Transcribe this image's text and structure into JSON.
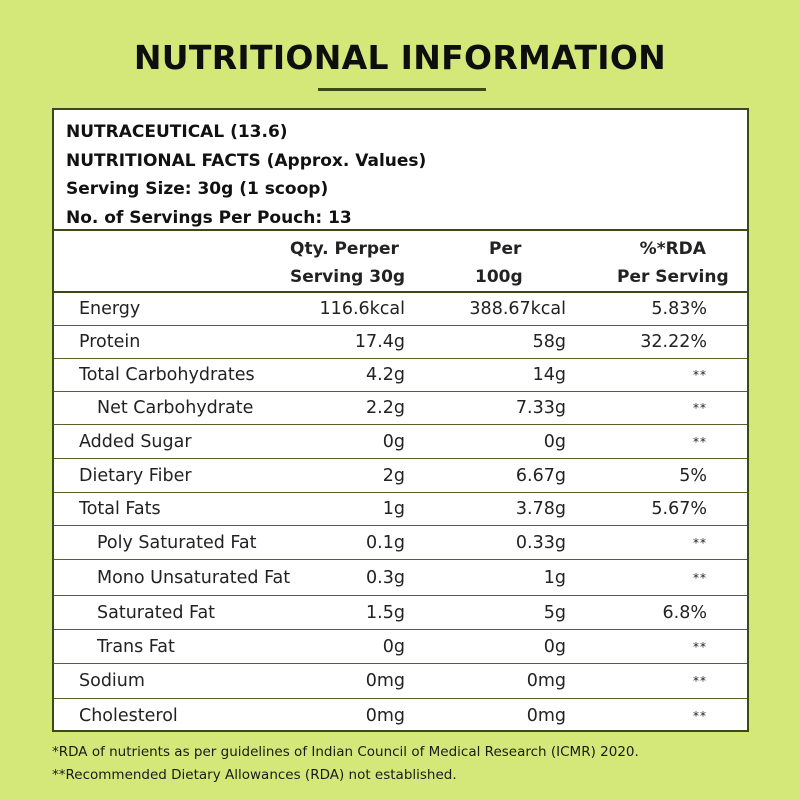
{
  "title": "NUTRITIONAL INFORMATION",
  "facts": [
    "NUTRACEUTICAL (13.6)",
    "NUTRITIONAL FACTS (Approx. Values)",
    "Serving Size: 30g (1 scoop)",
    "No. of Servings Per Pouch: 13"
  ],
  "headers": {
    "qty": [
      "Qty. Perper",
      "Serving 30g"
    ],
    "per": [
      "Per",
      "100g"
    ],
    "rda": [
      "%*RDA",
      "Per Serving"
    ]
  },
  "rows": [
    {
      "name": "Energy",
      "qty": "116.6kcal",
      "per100": "388.67kcal",
      "rda": "5.83%",
      "indent": false
    },
    {
      "name": "Protein",
      "qty": "17.4g",
      "per100": "58g",
      "rda": "32.22%",
      "indent": false
    },
    {
      "name": "Total Carbohydrates",
      "qty": "4.2g",
      "per100": "14g",
      "rda": "**",
      "indent": false
    },
    {
      "name": "Net Carbohydrate",
      "qty": "2.2g",
      "per100": "7.33g",
      "rda": "**",
      "indent": true
    },
    {
      "name": "Added Sugar",
      "qty": "0g",
      "per100": "0g",
      "rda": "**",
      "indent": false
    },
    {
      "name": "Dietary Fiber",
      "qty": "2g",
      "per100": "6.67g",
      "rda": "5%",
      "indent": false
    },
    {
      "name": "Total Fats",
      "qty": "1g",
      "per100": "3.78g",
      "rda": "5.67%",
      "indent": false
    },
    {
      "name": "Poly Saturated Fat",
      "qty": "0.1g",
      "per100": "0.33g",
      "rda": "**",
      "indent": true
    },
    {
      "name": "Mono Unsaturated Fat",
      "qty": "0.3g",
      "per100": "1g",
      "rda": "**",
      "indent": true
    },
    {
      "name": "Saturated Fat",
      "qty": "1.5g",
      "per100": "5g",
      "rda": "6.8%",
      "indent": true
    },
    {
      "name": "Trans Fat",
      "qty": "0g",
      "per100": "0g",
      "rda": "**",
      "indent": true
    },
    {
      "name": "Sodium",
      "qty": "0mg",
      "per100": "0mg",
      "rda": "**",
      "indent": false
    },
    {
      "name": "Cholesterol",
      "qty": "0mg",
      "per100": "0mg",
      "rda": "**",
      "indent": false
    }
  ],
  "footnotes": [
    "*RDA of nutrients as per guidelines of Indian Council of Medical Research (ICMR) 2020.",
    "**Recommended Dietary Allowances (RDA) not established."
  ],
  "colors": {
    "background": "#d4e87a",
    "border": "#3c4a17",
    "panel": "#ffffff"
  }
}
